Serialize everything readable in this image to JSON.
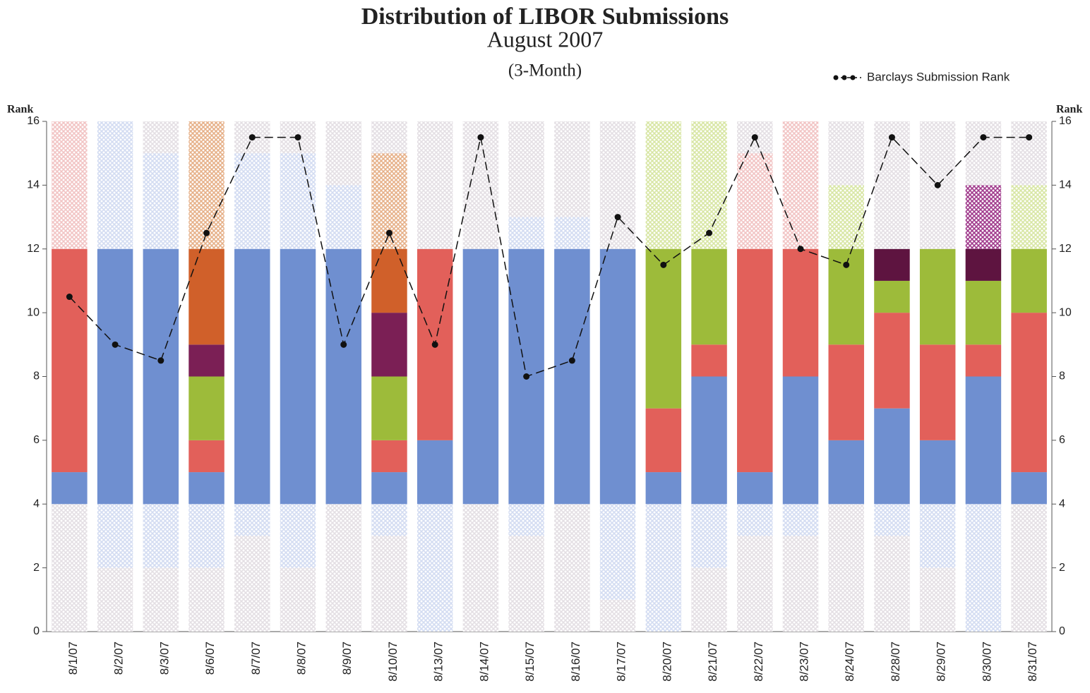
{
  "chart_data": {
    "type": "stacked-bar-line",
    "title": "Distribution of LIBOR Submissions",
    "subtitle": "August 2007",
    "tenor": "(3-Month)",
    "ylabel": "Rank",
    "y2label": "Rank",
    "ylim": [
      0,
      16
    ],
    "yticks": [
      0,
      2,
      4,
      6,
      8,
      10,
      12,
      14,
      16
    ],
    "categories": [
      "8/1/07",
      "8/2/07",
      "8/3/07",
      "8/6/07",
      "8/7/07",
      "8/8/07",
      "8/9/07",
      "8/10/07",
      "8/13/07",
      "8/14/07",
      "8/15/07",
      "8/16/07",
      "8/17/07",
      "8/20/07",
      "8/21/07",
      "8/22/07",
      "8/23/07",
      "8/24/07",
      "8/28/07",
      "8/29/07",
      "8/30/07",
      "8/31/07"
    ],
    "segments": [
      [
        {
          "value": 4,
          "color": "#e4dfe4",
          "hatched": true
        },
        {
          "value": 1,
          "color": "#6f8fd0",
          "hatched": false
        },
        {
          "value": 7,
          "color": "#e2605a",
          "hatched": false
        },
        {
          "value": 4,
          "color": "#f2c4c4",
          "hatched": true
        }
      ],
      [
        {
          "value": 2,
          "color": "#e4dfe4",
          "hatched": true
        },
        {
          "value": 2,
          "color": "#d3dcf2",
          "hatched": true
        },
        {
          "value": 8,
          "color": "#6f8fd0",
          "hatched": false
        },
        {
          "value": 4,
          "color": "#d3dcf2",
          "hatched": true
        }
      ],
      [
        {
          "value": 2,
          "color": "#e4dfe4",
          "hatched": true
        },
        {
          "value": 2,
          "color": "#d3dcf2",
          "hatched": true
        },
        {
          "value": 8,
          "color": "#6f8fd0",
          "hatched": false
        },
        {
          "value": 3,
          "color": "#d3dcf2",
          "hatched": true
        },
        {
          "value": 1,
          "color": "#e4dfe4",
          "hatched": true
        }
      ],
      [
        {
          "value": 2,
          "color": "#e4dfe4",
          "hatched": true
        },
        {
          "value": 2,
          "color": "#d3dcf2",
          "hatched": true
        },
        {
          "value": 1,
          "color": "#6f8fd0",
          "hatched": false
        },
        {
          "value": 1,
          "color": "#e2605a",
          "hatched": false
        },
        {
          "value": 2,
          "color": "#9dbb3a",
          "hatched": false
        },
        {
          "value": 1,
          "color": "#7b1f55",
          "hatched": false
        },
        {
          "value": 3,
          "color": "#d0602a",
          "hatched": false
        },
        {
          "value": 4,
          "color": "#e6b088",
          "hatched": true
        }
      ],
      [
        {
          "value": 3,
          "color": "#e4dfe4",
          "hatched": true
        },
        {
          "value": 1,
          "color": "#d3dcf2",
          "hatched": true
        },
        {
          "value": 8,
          "color": "#6f8fd0",
          "hatched": false
        },
        {
          "value": 3,
          "color": "#d3dcf2",
          "hatched": true
        },
        {
          "value": 1,
          "color": "#e4dfe4",
          "hatched": true
        }
      ],
      [
        {
          "value": 2,
          "color": "#e4dfe4",
          "hatched": true
        },
        {
          "value": 2,
          "color": "#d3dcf2",
          "hatched": true
        },
        {
          "value": 8,
          "color": "#6f8fd0",
          "hatched": false
        },
        {
          "value": 3,
          "color": "#d3dcf2",
          "hatched": true
        },
        {
          "value": 1,
          "color": "#e4dfe4",
          "hatched": true
        }
      ],
      [
        {
          "value": 4,
          "color": "#e4dfe4",
          "hatched": true
        },
        {
          "value": 8,
          "color": "#6f8fd0",
          "hatched": false
        },
        {
          "value": 2,
          "color": "#d3dcf2",
          "hatched": true
        },
        {
          "value": 2,
          "color": "#e4dfe4",
          "hatched": true
        }
      ],
      [
        {
          "value": 3,
          "color": "#e4dfe4",
          "hatched": true
        },
        {
          "value": 1,
          "color": "#d3dcf2",
          "hatched": true
        },
        {
          "value": 1,
          "color": "#6f8fd0",
          "hatched": false
        },
        {
          "value": 1,
          "color": "#e2605a",
          "hatched": false
        },
        {
          "value": 2,
          "color": "#9dbb3a",
          "hatched": false
        },
        {
          "value": 2,
          "color": "#7b1f55",
          "hatched": false
        },
        {
          "value": 2,
          "color": "#d0602a",
          "hatched": false
        },
        {
          "value": 3,
          "color": "#e6b088",
          "hatched": true
        },
        {
          "value": 1,
          "color": "#e4dfe4",
          "hatched": true
        }
      ],
      [
        {
          "value": 4,
          "color": "#d3dcf2",
          "hatched": true
        },
        {
          "value": 2,
          "color": "#6f8fd0",
          "hatched": false
        },
        {
          "value": 6,
          "color": "#e2605a",
          "hatched": false
        },
        {
          "value": 4,
          "color": "#e4dfe4",
          "hatched": true
        }
      ],
      [
        {
          "value": 4,
          "color": "#e4dfe4",
          "hatched": true
        },
        {
          "value": 8,
          "color": "#6f8fd0",
          "hatched": false
        },
        {
          "value": 4,
          "color": "#e4dfe4",
          "hatched": true
        }
      ],
      [
        {
          "value": 3,
          "color": "#e4dfe4",
          "hatched": true
        },
        {
          "value": 1,
          "color": "#d3dcf2",
          "hatched": true
        },
        {
          "value": 8,
          "color": "#6f8fd0",
          "hatched": false
        },
        {
          "value": 1,
          "color": "#d3dcf2",
          "hatched": true
        },
        {
          "value": 3,
          "color": "#e4dfe4",
          "hatched": true
        }
      ],
      [
        {
          "value": 4,
          "color": "#e4dfe4",
          "hatched": true
        },
        {
          "value": 8,
          "color": "#6f8fd0",
          "hatched": false
        },
        {
          "value": 1,
          "color": "#d3dcf2",
          "hatched": true
        },
        {
          "value": 3,
          "color": "#e4dfe4",
          "hatched": true
        }
      ],
      [
        {
          "value": 1,
          "color": "#e4dfe4",
          "hatched": true
        },
        {
          "value": 3,
          "color": "#d3dcf2",
          "hatched": true
        },
        {
          "value": 8,
          "color": "#6f8fd0",
          "hatched": false
        },
        {
          "value": 4,
          "color": "#e4dfe4",
          "hatched": true
        }
      ],
      [
        {
          "value": 4,
          "color": "#d3dcf2",
          "hatched": true
        },
        {
          "value": 1,
          "color": "#6f8fd0",
          "hatched": false
        },
        {
          "value": 2,
          "color": "#e2605a",
          "hatched": false
        },
        {
          "value": 5,
          "color": "#9dbb3a",
          "hatched": false
        },
        {
          "value": 4,
          "color": "#d8e6a4",
          "hatched": true
        }
      ],
      [
        {
          "value": 2,
          "color": "#e4dfe4",
          "hatched": true
        },
        {
          "value": 2,
          "color": "#d3dcf2",
          "hatched": true
        },
        {
          "value": 4,
          "color": "#6f8fd0",
          "hatched": false
        },
        {
          "value": 1,
          "color": "#e2605a",
          "hatched": false
        },
        {
          "value": 3,
          "color": "#9dbb3a",
          "hatched": false
        },
        {
          "value": 4,
          "color": "#d8e6a4",
          "hatched": true
        }
      ],
      [
        {
          "value": 3,
          "color": "#e4dfe4",
          "hatched": true
        },
        {
          "value": 1,
          "color": "#d3dcf2",
          "hatched": true
        },
        {
          "value": 1,
          "color": "#6f8fd0",
          "hatched": false
        },
        {
          "value": 7,
          "color": "#e2605a",
          "hatched": false
        },
        {
          "value": 3,
          "color": "#f2c4c4",
          "hatched": true
        },
        {
          "value": 1,
          "color": "#e4dfe4",
          "hatched": true
        }
      ],
      [
        {
          "value": 3,
          "color": "#e4dfe4",
          "hatched": true
        },
        {
          "value": 1,
          "color": "#d3dcf2",
          "hatched": true
        },
        {
          "value": 4,
          "color": "#6f8fd0",
          "hatched": false
        },
        {
          "value": 4,
          "color": "#e2605a",
          "hatched": false
        },
        {
          "value": 4,
          "color": "#f2c4c4",
          "hatched": true
        }
      ],
      [
        {
          "value": 4,
          "color": "#e4dfe4",
          "hatched": true
        },
        {
          "value": 2,
          "color": "#6f8fd0",
          "hatched": false
        },
        {
          "value": 3,
          "color": "#e2605a",
          "hatched": false
        },
        {
          "value": 3,
          "color": "#9dbb3a",
          "hatched": false
        },
        {
          "value": 2,
          "color": "#d8e6a4",
          "hatched": true
        },
        {
          "value": 2,
          "color": "#e4dfe4",
          "hatched": true
        }
      ],
      [
        {
          "value": 3,
          "color": "#e4dfe4",
          "hatched": true
        },
        {
          "value": 1,
          "color": "#d3dcf2",
          "hatched": true
        },
        {
          "value": 3,
          "color": "#6f8fd0",
          "hatched": false
        },
        {
          "value": 3,
          "color": "#e2605a",
          "hatched": false
        },
        {
          "value": 1,
          "color": "#9dbb3a",
          "hatched": false
        },
        {
          "value": 1,
          "color": "#5e1440",
          "hatched": false
        },
        {
          "value": 4,
          "color": "#e4dfe4",
          "hatched": true
        }
      ],
      [
        {
          "value": 2,
          "color": "#e4dfe4",
          "hatched": true
        },
        {
          "value": 2,
          "color": "#d3dcf2",
          "hatched": true
        },
        {
          "value": 2,
          "color": "#6f8fd0",
          "hatched": false
        },
        {
          "value": 3,
          "color": "#e2605a",
          "hatched": false
        },
        {
          "value": 3,
          "color": "#9dbb3a",
          "hatched": false
        },
        {
          "value": 4,
          "color": "#e4dfe4",
          "hatched": true
        }
      ],
      [
        {
          "value": 4,
          "color": "#d3dcf2",
          "hatched": true
        },
        {
          "value": 4,
          "color": "#6f8fd0",
          "hatched": false
        },
        {
          "value": 1,
          "color": "#e2605a",
          "hatched": false
        },
        {
          "value": 2,
          "color": "#9dbb3a",
          "hatched": false
        },
        {
          "value": 1,
          "color": "#5e1440",
          "hatched": false
        },
        {
          "value": 2,
          "color": "#a03a8c",
          "hatched": true
        },
        {
          "value": 2,
          "color": "#e4dfe4",
          "hatched": true
        }
      ],
      [
        {
          "value": 4,
          "color": "#e4dfe4",
          "hatched": true
        },
        {
          "value": 1,
          "color": "#6f8fd0",
          "hatched": false
        },
        {
          "value": 5,
          "color": "#e2605a",
          "hatched": false
        },
        {
          "value": 2,
          "color": "#9dbb3a",
          "hatched": false
        },
        {
          "value": 2,
          "color": "#d8e6a4",
          "hatched": true
        },
        {
          "value": 2,
          "color": "#e4dfe4",
          "hatched": true
        }
      ]
    ],
    "series": [
      {
        "name": "Barclays Submission Rank",
        "color": "#111111",
        "values": [
          10.5,
          9,
          8.5,
          12.5,
          15.5,
          15.5,
          9,
          12.5,
          9,
          15.5,
          8,
          8.5,
          13,
          11.5,
          12.5,
          15.5,
          12,
          11.5,
          15.5,
          14,
          15.5,
          15.5
        ]
      }
    ],
    "legend": "top-right"
  }
}
